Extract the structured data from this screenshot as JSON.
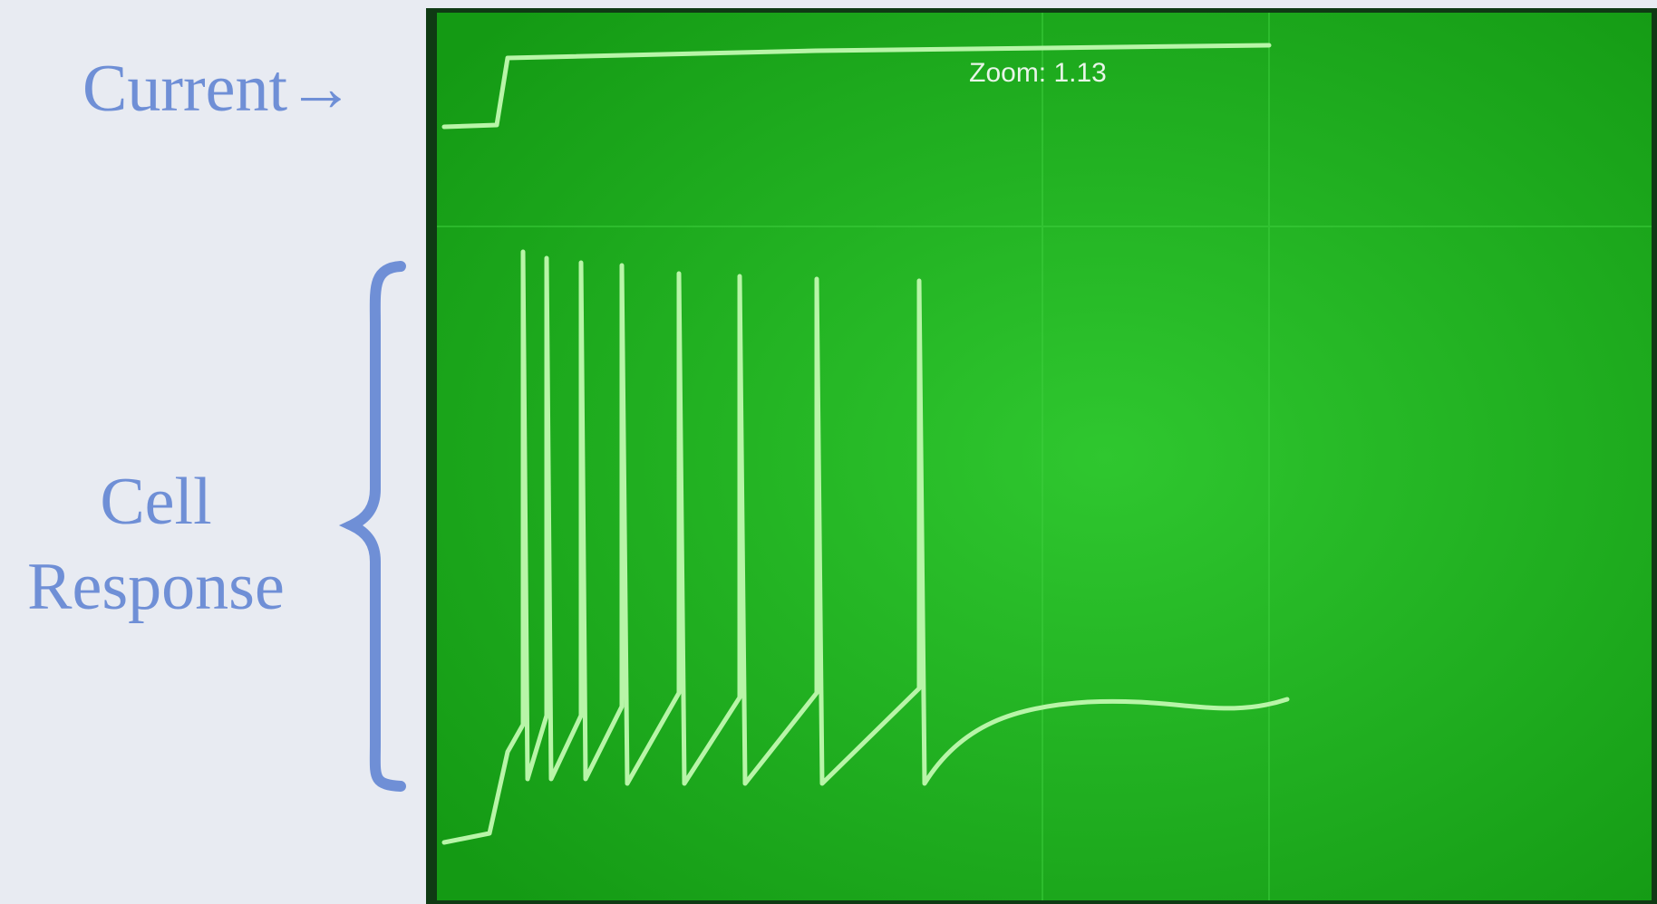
{
  "labels": {
    "current": "Current→",
    "cell_response": [
      "Cell",
      "Response"
    ]
  },
  "scope": {
    "overlay": "Zoom: 1.13"
  }
}
